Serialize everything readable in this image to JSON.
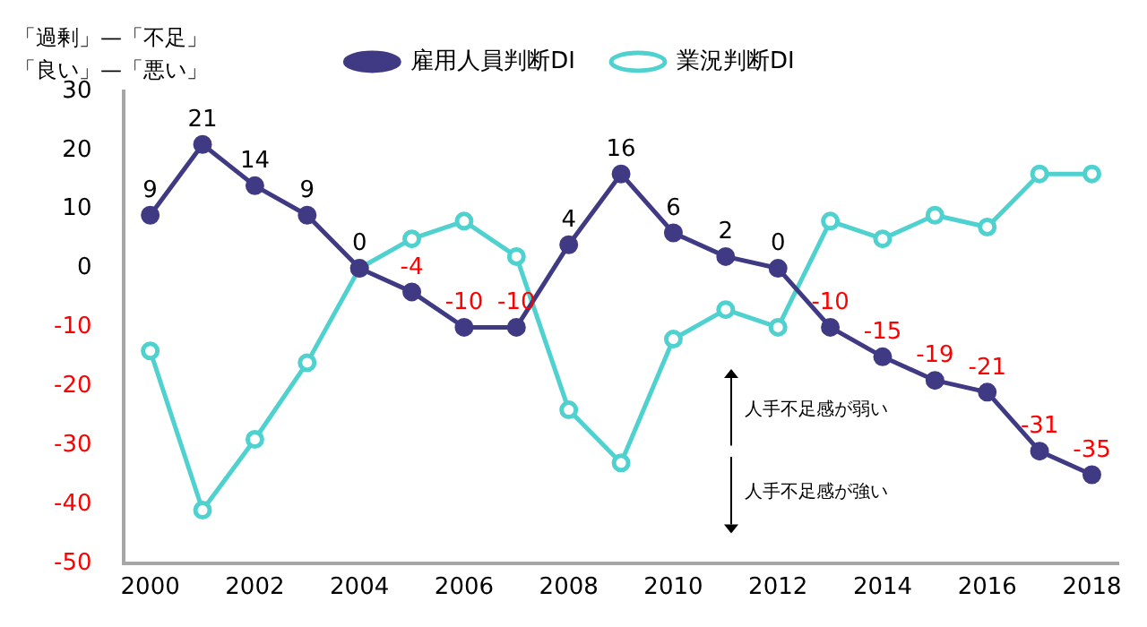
{
  "chart_data": {
    "type": "line",
    "categories": [
      "2000",
      null,
      "2002",
      null,
      "2004",
      null,
      "2006",
      null,
      "2008",
      null,
      "2010",
      null,
      "2012",
      null,
      "2014",
      null,
      "2016",
      null,
      "2018"
    ],
    "series": [
      {
        "name": "雇用人員判断DI",
        "color": "#3f3a83",
        "marker": "circle",
        "values": [
          9,
          21,
          14,
          9,
          0,
          -4,
          -10,
          -10,
          4,
          16,
          6,
          2,
          0,
          -10,
          -15,
          -19,
          -21,
          -31,
          -35
        ],
        "value_labels": [
          "9",
          "21",
          "14",
          "9",
          "0",
          "-4",
          "-10",
          "-10",
          "4",
          "16",
          "6",
          "2",
          "0",
          "-10",
          "-15",
          "-19",
          "-21",
          "-31",
          "-35"
        ]
      },
      {
        "name": "業況判断DI",
        "color": "#4fd1cf",
        "marker": "circle",
        "values": [
          -14,
          -41,
          -29,
          -16,
          0,
          5,
          8,
          2,
          -24,
          -33,
          -12,
          -7,
          -10,
          8,
          5,
          9,
          7,
          16,
          16
        ]
      }
    ],
    "ylim": [
      -50,
      30
    ],
    "yticks": [
      -50,
      -40,
      -30,
      -20,
      -10,
      0,
      10,
      20,
      30
    ],
    "grid": false,
    "legend": "top",
    "annotations": [
      "「過剰」—「不足」",
      "「良い」—「悪い」",
      "人手不足感が弱い",
      "人手不足感が強い"
    ]
  }
}
